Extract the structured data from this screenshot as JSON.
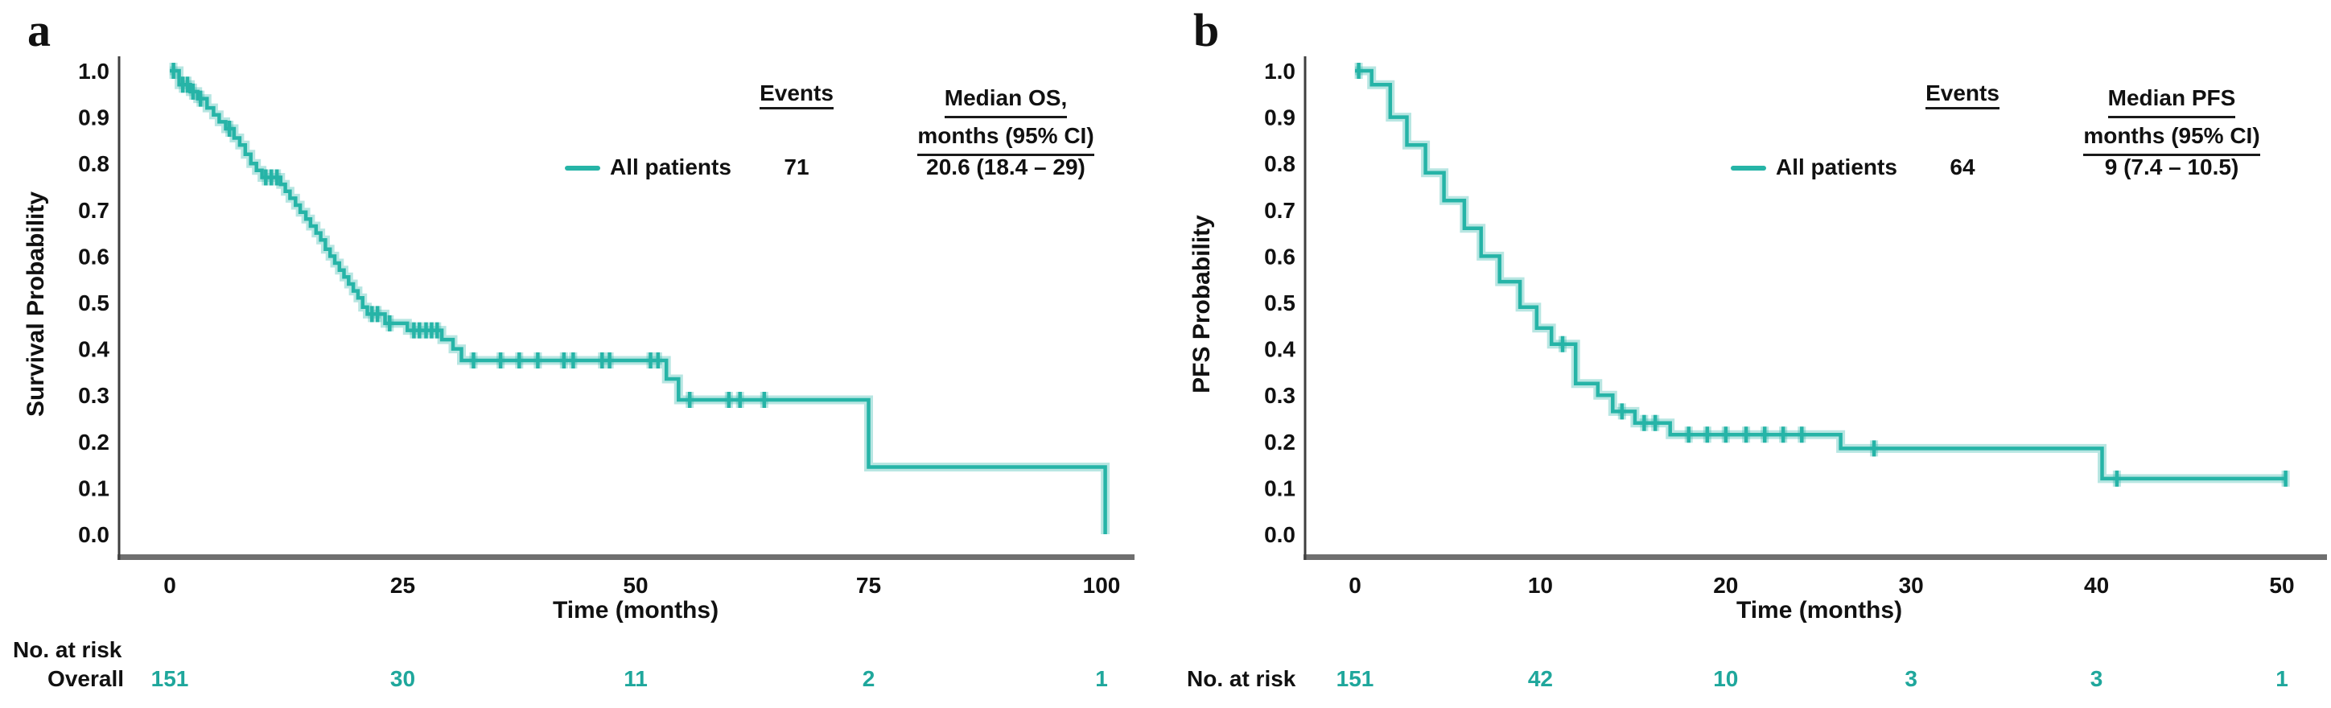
{
  "colors": {
    "curve": "#26B4A7",
    "curve_halo": "rgba(38,180,167,0.33)",
    "risk_numbers": "#1FA79C",
    "axis": "#3F3F3F",
    "baseline_bar": "#6F6F6F",
    "text": "#111111"
  },
  "chart_data": [
    {
      "type": "line",
      "subtype": "kaplan_meier_step",
      "panel_label": "a",
      "ylabel": "Survival Probability",
      "xlabel": "Time (months)",
      "ylim": [
        0.0,
        1.0
      ],
      "xlim": [
        0,
        104
      ],
      "grid": false,
      "y_ticks": [
        "1.0",
        "0.9",
        "0.8",
        "0.7",
        "0.6",
        "0.5",
        "0.4",
        "0.3",
        "0.2",
        "0.1",
        "0.0"
      ],
      "x_ticks": [
        0,
        25,
        50,
        75,
        100
      ],
      "legend": {
        "position": "upper right",
        "events_header": "Events",
        "median_header_line1": "Median OS,",
        "median_header_line2": "months (95% CI)",
        "events_value": "71",
        "median_value": "20.6 (18.4 – 29)"
      },
      "series": [
        {
          "name": "All patients",
          "events": 71,
          "median_months": 20.6,
          "ci95": "18.4 – 29",
          "end_time": 100.4,
          "steps": [
            [
              0,
              1.0
            ],
            [
              1.0,
              0.97
            ],
            [
              2.2,
              0.955
            ],
            [
              3.0,
              0.94
            ],
            [
              4.0,
              0.92
            ],
            [
              4.7,
              0.905
            ],
            [
              5.3,
              0.89
            ],
            [
              6.0,
              0.875
            ],
            [
              6.9,
              0.855
            ],
            [
              7.5,
              0.84
            ],
            [
              8.1,
              0.82
            ],
            [
              8.7,
              0.8
            ],
            [
              9.3,
              0.785
            ],
            [
              9.9,
              0.77
            ],
            [
              11.9,
              0.755
            ],
            [
              12.4,
              0.74
            ],
            [
              12.9,
              0.725
            ],
            [
              13.5,
              0.71
            ],
            [
              14.0,
              0.695
            ],
            [
              14.6,
              0.68
            ],
            [
              15.1,
              0.665
            ],
            [
              15.7,
              0.65
            ],
            [
              16.2,
              0.635
            ],
            [
              16.7,
              0.615
            ],
            [
              17.2,
              0.6
            ],
            [
              17.7,
              0.585
            ],
            [
              18.2,
              0.57
            ],
            [
              18.7,
              0.555
            ],
            [
              19.2,
              0.54
            ],
            [
              19.7,
              0.525
            ],
            [
              20.2,
              0.51
            ],
            [
              20.7,
              0.49
            ],
            [
              21.2,
              0.475
            ],
            [
              23.1,
              0.455
            ],
            [
              25.5,
              0.44
            ],
            [
              29.2,
              0.42
            ],
            [
              30.4,
              0.4
            ],
            [
              31.3,
              0.375
            ],
            [
              53.3,
              0.335
            ],
            [
              54.6,
              0.29
            ],
            [
              75.0,
              0.145
            ],
            [
              100.4,
              0.0
            ]
          ],
          "censors": [
            [
              0.4,
              1.0
            ],
            [
              1.4,
              0.97
            ],
            [
              1.9,
              0.97
            ],
            [
              2.5,
              0.955
            ],
            [
              3.3,
              0.94
            ],
            [
              6.4,
              0.875
            ],
            [
              10.3,
              0.77
            ],
            [
              10.9,
              0.77
            ],
            [
              11.5,
              0.77
            ],
            [
              21.7,
              0.475
            ],
            [
              22.3,
              0.475
            ],
            [
              23.6,
              0.455
            ],
            [
              26.2,
              0.44
            ],
            [
              26.8,
              0.44
            ],
            [
              27.5,
              0.44
            ],
            [
              28.1,
              0.44
            ],
            [
              28.7,
              0.44
            ],
            [
              32.6,
              0.375
            ],
            [
              35.5,
              0.375
            ],
            [
              37.5,
              0.375
            ],
            [
              39.5,
              0.375
            ],
            [
              42.3,
              0.375
            ],
            [
              43.3,
              0.375
            ],
            [
              46.4,
              0.375
            ],
            [
              47.2,
              0.375
            ],
            [
              51.6,
              0.375
            ],
            [
              52.4,
              0.375
            ],
            [
              55.8,
              0.29
            ],
            [
              60.0,
              0.29
            ],
            [
              61.2,
              0.29
            ],
            [
              63.8,
              0.29
            ]
          ]
        }
      ],
      "risk_table": {
        "title": "No. at risk",
        "row_label": "Overall",
        "values": [
          "151",
          "30",
          "11",
          "2",
          "1"
        ]
      }
    },
    {
      "type": "line",
      "subtype": "kaplan_meier_step",
      "panel_label": "b",
      "ylabel": "PFS Probability",
      "xlabel": "Time (months)",
      "ylim": [
        0.0,
        1.0
      ],
      "xlim": [
        0,
        52
      ],
      "grid": false,
      "y_ticks": [
        "1.0",
        "0.9",
        "0.8",
        "0.7",
        "0.6",
        "0.5",
        "0.4",
        "0.3",
        "0.2",
        "0.1",
        "0.0"
      ],
      "x_ticks": [
        0,
        10,
        20,
        30,
        40,
        50
      ],
      "legend": {
        "position": "upper right",
        "events_header": "Events",
        "median_header_line1": "Median PFS",
        "median_header_line2": "months (95% CI)",
        "events_value": "64",
        "median_value": "9 (7.4 – 10.5)"
      },
      "series": [
        {
          "name": "All patients",
          "events": 64,
          "median_months": 9,
          "ci95": "7.4 – 10.5",
          "end_time": 50.2,
          "steps": [
            [
              0,
              1.0
            ],
            [
              0.9,
              0.97
            ],
            [
              1.9,
              0.9
            ],
            [
              2.8,
              0.84
            ],
            [
              3.8,
              0.78
            ],
            [
              4.8,
              0.72
            ],
            [
              5.9,
              0.66
            ],
            [
              6.8,
              0.6
            ],
            [
              7.8,
              0.545
            ],
            [
              8.9,
              0.49
            ],
            [
              9.8,
              0.445
            ],
            [
              10.6,
              0.41
            ],
            [
              11.9,
              0.325
            ],
            [
              13.1,
              0.3
            ],
            [
              13.9,
              0.265
            ],
            [
              15.1,
              0.24
            ],
            [
              17.0,
              0.215
            ],
            [
              26.2,
              0.185
            ],
            [
              40.3,
              0.12
            ]
          ],
          "censors": [
            [
              0.2,
              1.0
            ],
            [
              11.2,
              0.41
            ],
            [
              14.4,
              0.265
            ],
            [
              15.6,
              0.24
            ],
            [
              16.2,
              0.24
            ],
            [
              18.0,
              0.215
            ],
            [
              19.0,
              0.215
            ],
            [
              20.0,
              0.215
            ],
            [
              21.1,
              0.215
            ],
            [
              22.1,
              0.215
            ],
            [
              23.1,
              0.215
            ],
            [
              24.1,
              0.215
            ],
            [
              28.0,
              0.185
            ],
            [
              41.1,
              0.12
            ],
            [
              50.2,
              0.12
            ]
          ]
        }
      ],
      "risk_table": {
        "title": "No. at risk",
        "row_label": "",
        "values": [
          "151",
          "42",
          "10",
          "3",
          "3",
          "1"
        ]
      }
    }
  ]
}
